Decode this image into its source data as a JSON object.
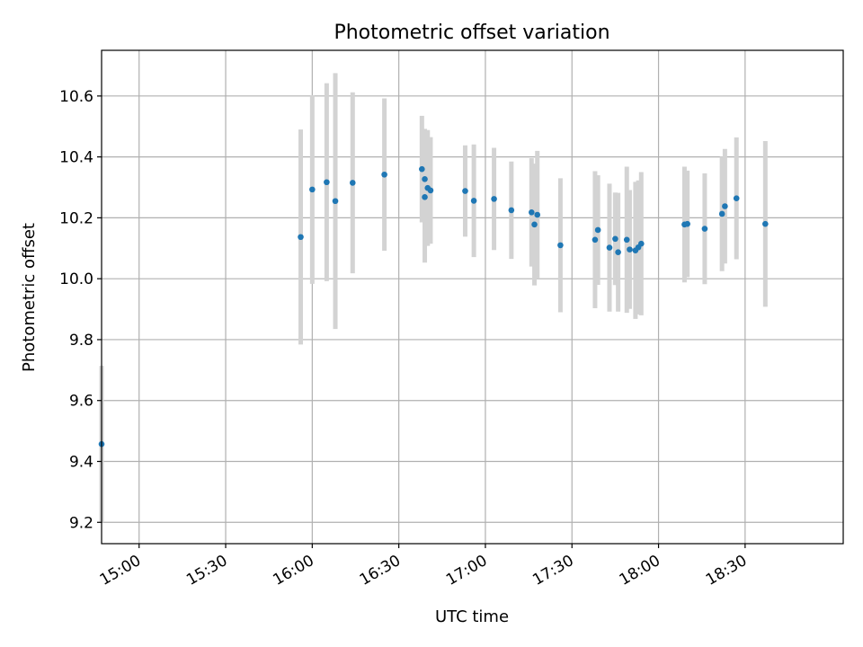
{
  "chart_data": {
    "type": "scatter",
    "title": "Photometric offset variation",
    "xlabel": "UTC time",
    "ylabel": "Photometric offset",
    "grid": true,
    "xlim": [
      "14:47",
      "19:04"
    ],
    "ylim": [
      9.13,
      10.75
    ],
    "xticks": [
      "15:00",
      "15:30",
      "16:00",
      "16:30",
      "17:00",
      "17:30",
      "18:00",
      "18:30"
    ],
    "yticks": [
      9.2,
      9.4,
      9.6,
      9.8,
      10.0,
      10.2,
      10.4,
      10.6
    ],
    "ytick_labels": [
      "9.2",
      "9.4",
      "9.6",
      "9.8",
      "10.0",
      "10.2",
      "10.4",
      "10.6"
    ],
    "point_color": "#1f77b4",
    "errorbar_color": "#d3d3d3",
    "points": [
      {
        "t": "14:47",
        "y": 9.457,
        "err": 0.257
      },
      {
        "t": "15:56",
        "y": 10.137,
        "err": 0.353
      },
      {
        "t": "16:00",
        "y": 10.293,
        "err": 0.31
      },
      {
        "t": "16:05",
        "y": 10.317,
        "err": 0.325
      },
      {
        "t": "16:08",
        "y": 10.255,
        "err": 0.42
      },
      {
        "t": "16:14",
        "y": 10.315,
        "err": 0.297
      },
      {
        "t": "16:25",
        "y": 10.342,
        "err": 0.25
      },
      {
        "t": "16:38",
        "y": 10.36,
        "err": 0.175
      },
      {
        "t": "16:39",
        "y": 10.327,
        "err": 0.165
      },
      {
        "t": "16:39",
        "y": 10.268,
        "err": 0.215
      },
      {
        "t": "16:40",
        "y": 10.298,
        "err": 0.19
      },
      {
        "t": "16:41",
        "y": 10.29,
        "err": 0.175
      },
      {
        "t": "16:53",
        "y": 10.288,
        "err": 0.15
      },
      {
        "t": "16:56",
        "y": 10.256,
        "err": 0.185
      },
      {
        "t": "17:03",
        "y": 10.262,
        "err": 0.168
      },
      {
        "t": "17:09",
        "y": 10.225,
        "err": 0.16
      },
      {
        "t": "17:16",
        "y": 10.218,
        "err": 0.178
      },
      {
        "t": "17:17",
        "y": 10.178,
        "err": 0.2
      },
      {
        "t": "17:18",
        "y": 10.21,
        "err": 0.21
      },
      {
        "t": "17:26",
        "y": 10.11,
        "err": 0.22
      },
      {
        "t": "17:38",
        "y": 10.128,
        "err": 0.225
      },
      {
        "t": "17:39",
        "y": 10.16,
        "err": 0.18
      },
      {
        "t": "17:43",
        "y": 10.102,
        "err": 0.21
      },
      {
        "t": "17:45",
        "y": 10.131,
        "err": 0.152
      },
      {
        "t": "17:46",
        "y": 10.087,
        "err": 0.195
      },
      {
        "t": "17:49",
        "y": 10.128,
        "err": 0.24
      },
      {
        "t": "17:50",
        "y": 10.096,
        "err": 0.195
      },
      {
        "t": "17:52",
        "y": 10.093,
        "err": 0.225
      },
      {
        "t": "17:53",
        "y": 10.103,
        "err": 0.22
      },
      {
        "t": "17:54",
        "y": 10.115,
        "err": 0.235
      },
      {
        "t": "18:09",
        "y": 10.178,
        "err": 0.19
      },
      {
        "t": "18:10",
        "y": 10.18,
        "err": 0.175
      },
      {
        "t": "18:16",
        "y": 10.164,
        "err": 0.182
      },
      {
        "t": "18:22",
        "y": 10.213,
        "err": 0.188
      },
      {
        "t": "18:23",
        "y": 10.238,
        "err": 0.188
      },
      {
        "t": "18:27",
        "y": 10.264,
        "err": 0.2
      },
      {
        "t": "18:37",
        "y": 10.18,
        "err": 0.272
      }
    ]
  }
}
